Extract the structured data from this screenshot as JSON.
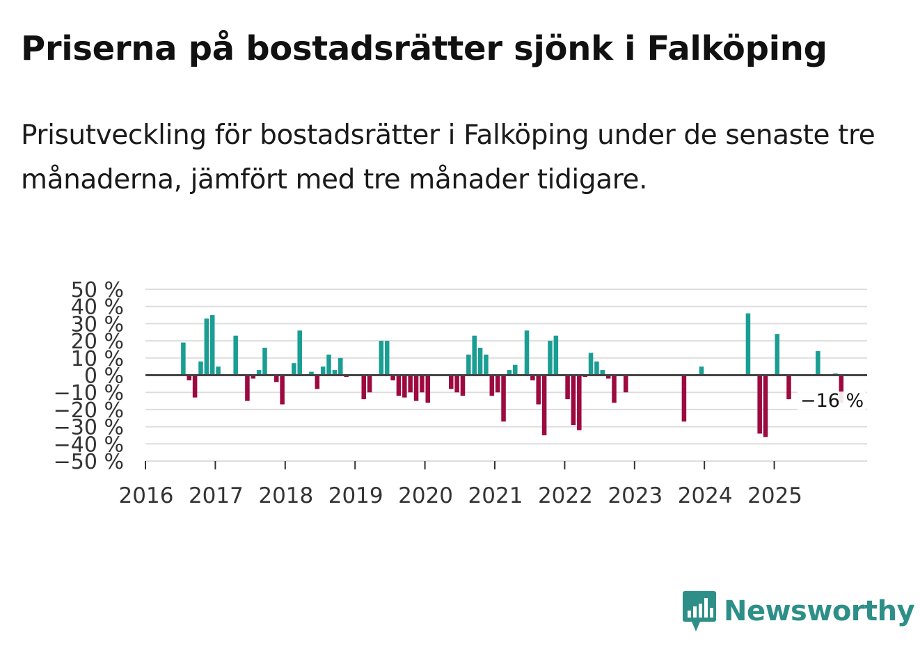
{
  "header": {
    "title": "Priserna på bostadsrätter sjönk i Falköping",
    "subtitle": "Prisutveckling för bostadsrätter i Falköping under de senaste tre månaderna, jämfört med tre månader tidigare."
  },
  "brand": {
    "name": "Newsworthy",
    "color": "#2d8f87"
  },
  "chart_data": {
    "type": "bar",
    "title": "Priserna på bostadsrätter sjönk i Falköping",
    "subtitle": "Prisutveckling för bostadsrätter i Falköping under de senaste tre månaderna, jämfört med tre månader tidigare.",
    "xlabel": "",
    "ylabel": "",
    "ylim": [
      -50,
      50
    ],
    "y_ticks": [
      50,
      40,
      30,
      20,
      10,
      0,
      -10,
      -20,
      -30,
      -40,
      -50
    ],
    "y_tick_labels": [
      "50 %",
      "40 %",
      "30 %",
      "20 %",
      "10 %",
      "0 %",
      "−10 %",
      "−20 %",
      "−30 %",
      "−40 %",
      "−50 %"
    ],
    "x_ticks": [
      "2016",
      "2017",
      "2018",
      "2019",
      "2020",
      "2021",
      "2022",
      "2023",
      "2024",
      "2025"
    ],
    "x_start": "2016-01",
    "grid": true,
    "colors": {
      "positive": "#1a9e94",
      "negative": "#9c0a40",
      "gridline": "#dddddd",
      "zero_line": "#444444"
    },
    "months": [
      "2016-07",
      "2016-08",
      "2016-09",
      "2016-10",
      "2016-11",
      "2016-12",
      "2017-01",
      "2017-02",
      "2017-03",
      "2017-04",
      "2017-05",
      "2017-06",
      "2017-07",
      "2017-08",
      "2017-09",
      "2017-10",
      "2017-11",
      "2017-12",
      "2018-01",
      "2018-02",
      "2018-03",
      "2018-04",
      "2018-05",
      "2018-06",
      "2018-07",
      "2018-08",
      "2018-09",
      "2018-10",
      "2018-11",
      "2018-12",
      "2019-01",
      "2019-02",
      "2019-03",
      "2019-04",
      "2019-05",
      "2019-06",
      "2019-07",
      "2019-08",
      "2019-09",
      "2019-10",
      "2019-11",
      "2019-12",
      "2020-01",
      "2020-02",
      "2020-03",
      "2020-04",
      "2020-05",
      "2020-06",
      "2020-07",
      "2020-08",
      "2020-09",
      "2020-10",
      "2020-11",
      "2020-12",
      "2021-01",
      "2021-02",
      "2021-03",
      "2021-04",
      "2021-05",
      "2021-06",
      "2021-07",
      "2021-08",
      "2021-09",
      "2021-10",
      "2021-11",
      "2021-12",
      "2022-01",
      "2022-02",
      "2022-03",
      "2022-04",
      "2022-05",
      "2022-06",
      "2022-07",
      "2022-08",
      "2022-09",
      "2022-10",
      "2022-11",
      "2022-12",
      "2023-01",
      "2023-02",
      "2023-03",
      "2023-04",
      "2023-05",
      "2023-06",
      "2023-07",
      "2023-08",
      "2023-09",
      "2023-10",
      "2023-11",
      "2023-12",
      "2024-01",
      "2024-02",
      "2024-03",
      "2024-04",
      "2024-05",
      "2024-06",
      "2024-07",
      "2024-08",
      "2024-09",
      "2024-10",
      "2024-11",
      "2024-12",
      "2025-01",
      "2025-02",
      "2025-03",
      "2025-04",
      "2025-05",
      "2025-06",
      "2025-07",
      "2025-08",
      "2025-09",
      "2025-10",
      "2025-11",
      "2025-12"
    ],
    "values": [
      19,
      -3,
      -13,
      8,
      33,
      35,
      5,
      null,
      null,
      23,
      null,
      -15,
      -2,
      3,
      16,
      null,
      -4,
      -17,
      null,
      7,
      26,
      null,
      2,
      -8,
      5,
      12,
      3,
      10,
      -1,
      null,
      null,
      -14,
      -10,
      null,
      20,
      20,
      -3,
      -12,
      -13,
      -10,
      -15,
      -10,
      -16,
      null,
      null,
      null,
      -8,
      -10,
      -12,
      12,
      23,
      16,
      12,
      -12,
      -10,
      -27,
      3,
      6,
      null,
      26,
      -3,
      -17,
      -35,
      20,
      23,
      null,
      -14,
      -29,
      -32,
      -1,
      13,
      8,
      3,
      -2,
      -16,
      null,
      -10,
      null,
      null,
      null,
      null,
      null,
      null,
      null,
      null,
      null,
      -27,
      null,
      null,
      5,
      null,
      null,
      null,
      null,
      null,
      null,
      null,
      36,
      null,
      -34,
      -36,
      null,
      24,
      null,
      -14,
      null,
      null,
      null,
      null,
      14,
      null,
      null,
      1,
      -16
    ],
    "annotation": {
      "text": "−16 %",
      "month": "2025-12",
      "value": -16
    }
  }
}
